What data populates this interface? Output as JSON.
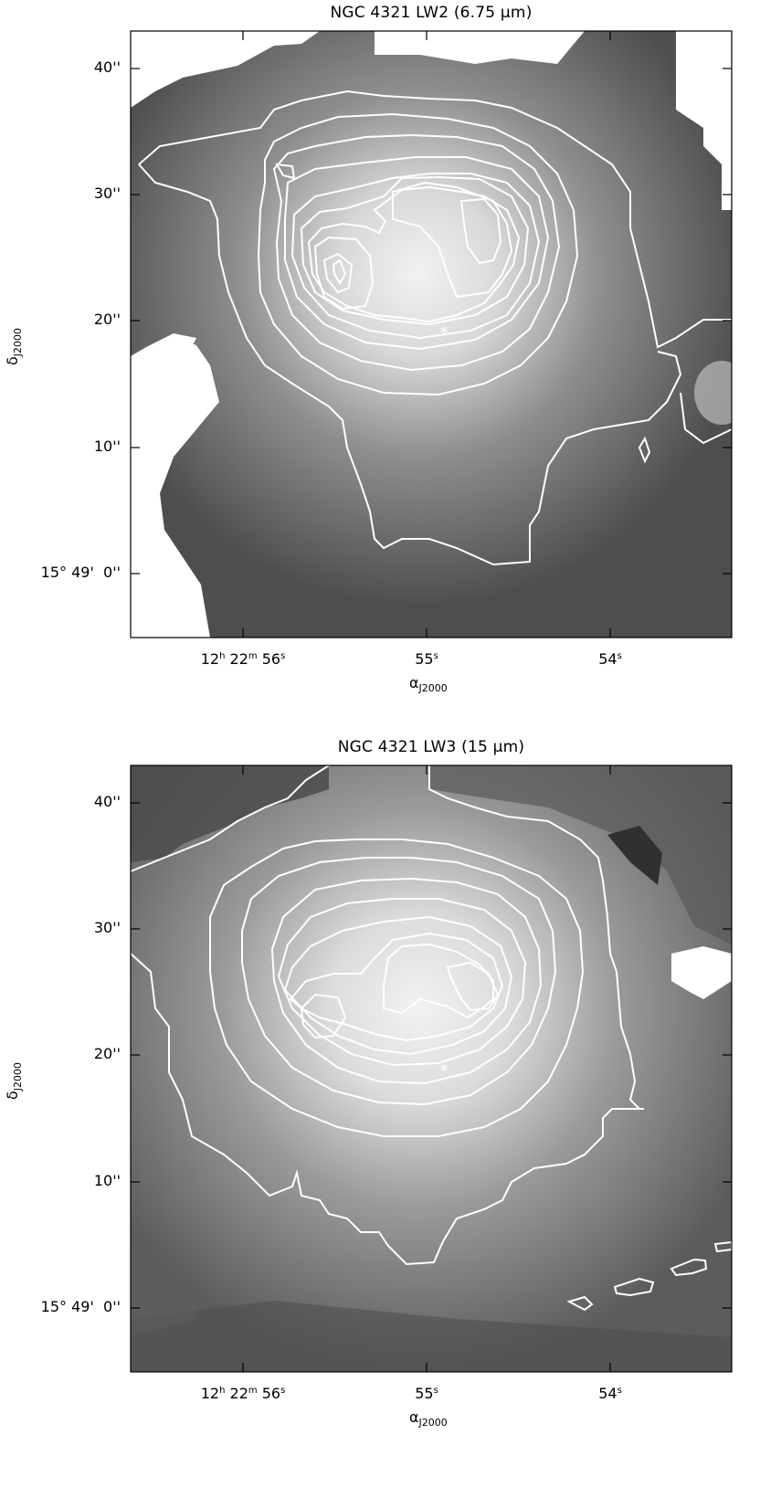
{
  "panels": [
    {
      "title": "NGC 4321 LW2 (6.75 μm)",
      "dec_ticks": [
        "40''",
        "30''",
        "20''",
        "10''",
        "0''"
      ],
      "dec_major_prefix": "15° 49'",
      "ra_ticks": {
        "first_h": "12",
        "first_m": "22",
        "first_s": "56",
        "second_s": "55",
        "third_s": "54"
      },
      "ra_label": "α",
      "ra_label_sub": "J2000",
      "dec_label": "δ",
      "dec_label_sub": "J2000"
    },
    {
      "title": "NGC 4321 LW3 (15 μm)",
      "dec_ticks": [
        "40''",
        "30''",
        "20''",
        "10''",
        "0''"
      ],
      "dec_major_prefix": "15° 49'",
      "ra_ticks": {
        "first_h": "12",
        "first_m": "22",
        "first_s": "56",
        "second_s": "55",
        "third_s": "54"
      },
      "ra_label": "α",
      "ra_label_sub": "J2000",
      "dec_label": "δ",
      "dec_label_sub": "J2000"
    }
  ],
  "colors": {
    "contour": "#ffffff",
    "frame": "#000000",
    "background_map": "#5a5a5a"
  }
}
